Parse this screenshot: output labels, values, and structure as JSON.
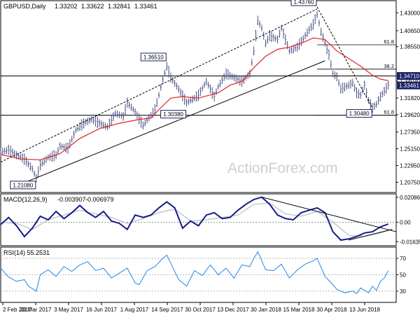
{
  "chart_data": [
    {
      "type": "candlestick",
      "panel": "price",
      "title": "GBPUSD,Daily",
      "ohlc": [
        "1.33202",
        "1.33622",
        "1.32841",
        "1.33461"
      ],
      "watermark": "ActionForex.com",
      "ylim": [
        1.195,
        1.445
      ],
      "yticks": [
        1.43,
        1.4065,
        1.3855,
        1.3403,
        1.3182,
        1.2962,
        1.2735,
        1.2515,
        1.2295,
        1.2075
      ],
      "ytick_labels": [
        "1.43000",
        "1.40650",
        "1.38550",
        "1.34030",
        "1.31820",
        "1.29620",
        "1.27350",
        "1.25150",
        "1.22950",
        "1.20750"
      ],
      "xlim": [
        0,
        100
      ],
      "close": [
        [
          0,
          1.247
        ],
        [
          2,
          1.25
        ],
        [
          4,
          1.243
        ],
        [
          6,
          1.238
        ],
        [
          8,
          1.225
        ],
        [
          9,
          1.213
        ],
        [
          10,
          1.23
        ],
        [
          12,
          1.24
        ],
        [
          14,
          1.243
        ],
        [
          15,
          1.255
        ],
        [
          17,
          1.252
        ],
        [
          19,
          1.276
        ],
        [
          21,
          1.285
        ],
        [
          23,
          1.29
        ],
        [
          25,
          1.285
        ],
        [
          27,
          1.28
        ],
        [
          29,
          1.298
        ],
        [
          31,
          1.294
        ],
        [
          32,
          1.312
        ],
        [
          34,
          1.3
        ],
        [
          36,
          1.282
        ],
        [
          37,
          1.289
        ],
        [
          39,
          1.302
        ],
        [
          41,
          1.342
        ],
        [
          42,
          1.36
        ],
        [
          43,
          1.345
        ],
        [
          45,
          1.33
        ],
        [
          47,
          1.312
        ],
        [
          49,
          1.318
        ],
        [
          50,
          1.322
        ],
        [
          52,
          1.34
        ],
        [
          54,
          1.32
        ],
        [
          55,
          1.333
        ],
        [
          57,
          1.35
        ],
        [
          59,
          1.345
        ],
        [
          61,
          1.34
        ],
        [
          63,
          1.35
        ],
        [
          64,
          1.38
        ],
        [
          65,
          1.42
        ],
        [
          66,
          1.41
        ],
        [
          67,
          1.39
        ],
        [
          68,
          1.4
        ],
        [
          70,
          1.395
        ],
        [
          71,
          1.41
        ],
        [
          73,
          1.38
        ],
        [
          75,
          1.385
        ],
        [
          77,
          1.4
        ],
        [
          79,
          1.415
        ],
        [
          80,
          1.428
        ],
        [
          81,
          1.405
        ],
        [
          82,
          1.39
        ],
        [
          83,
          1.375
        ],
        [
          84,
          1.35
        ],
        [
          85,
          1.346
        ],
        [
          86,
          1.33
        ],
        [
          88,
          1.335
        ],
        [
          89,
          1.338
        ],
        [
          90,
          1.325
        ],
        [
          91,
          1.322
        ],
        [
          92,
          1.335
        ],
        [
          93,
          1.315
        ],
        [
          94,
          1.305
        ],
        [
          95,
          1.31
        ],
        [
          96,
          1.32
        ],
        [
          97,
          1.327
        ],
        [
          98,
          1.335
        ]
      ],
      "moving_average": [
        [
          0,
          1.244
        ],
        [
          5,
          1.238
        ],
        [
          10,
          1.237
        ],
        [
          15,
          1.245
        ],
        [
          20,
          1.265
        ],
        [
          25,
          1.278
        ],
        [
          30,
          1.285
        ],
        [
          35,
          1.29
        ],
        [
          38,
          1.292
        ],
        [
          40,
          1.303
        ],
        [
          43,
          1.318
        ],
        [
          46,
          1.32
        ],
        [
          50,
          1.318
        ],
        [
          55,
          1.325
        ],
        [
          58,
          1.335
        ],
        [
          61,
          1.34
        ],
        [
          64,
          1.358
        ],
        [
          67,
          1.373
        ],
        [
          70,
          1.382
        ],
        [
          73,
          1.385
        ],
        [
          76,
          1.39
        ],
        [
          79,
          1.397
        ],
        [
          82,
          1.395
        ],
        [
          85,
          1.38
        ],
        [
          88,
          1.37
        ],
        [
          91,
          1.36
        ],
        [
          94,
          1.348
        ],
        [
          96,
          1.343
        ],
        [
          98,
          1.341
        ]
      ],
      "channel_lines": [
        {
          "style": "dashed",
          "from": [
            0,
            1.234
          ],
          "to": [
            80,
            1.435
          ]
        },
        {
          "style": "solid",
          "from": [
            6,
            1.207
          ],
          "to": [
            82,
            1.367
          ]
        }
      ],
      "horizontal_lines": [
        1.3471,
        1.2955
      ],
      "fibonacci": [
        {
          "label": "61.8",
          "level": 1.388
        },
        {
          "label": "38.2",
          "level": 1.356
        },
        {
          "label": "61.8",
          "level": 1.2955
        }
      ],
      "price_labels": [
        {
          "text": "1.43760",
          "x": 80,
          "y": 1.4376
        },
        {
          "text": "1.36510",
          "x": 42,
          "y": 1.3651
        },
        {
          "text": "1.30380",
          "x": 47,
          "y": 1.3038
        },
        {
          "text": "1.21080",
          "x": 9,
          "y": 1.2108
        },
        {
          "text": "1.30480",
          "x": 94,
          "y": 1.3048
        }
      ],
      "right_badges": [
        {
          "text": "1.34710",
          "level": 1.3471
        },
        {
          "text": "1.33461",
          "level": 1.33461
        }
      ],
      "colors": {
        "price": "#4a4f86",
        "moving_average": "#e0222a",
        "trend": "#000000",
        "badge_bg": "#1b2266"
      }
    },
    {
      "type": "line",
      "panel": "macd",
      "title": "MACD(12,26,9)",
      "values": [
        "-0.003907",
        "-0.006979"
      ],
      "ylim": [
        -0.0185,
        0.0225
      ],
      "yticks": [
        0.020861,
        0.0,
        -0.016357
      ],
      "ytick_labels": [
        "0.020861",
        "0.00",
        "-0.016357"
      ],
      "series": [
        {
          "points": [
            [
              0,
              -0.002
            ],
            [
              2,
              0.004
            ],
            [
              4,
              -0.003
            ],
            [
              6,
              -0.012
            ],
            [
              8,
              -0.005
            ],
            [
              10,
              0.005
            ],
            [
              12,
              0.002
            ],
            [
              14,
              0.009
            ],
            [
              16,
              0.003
            ],
            [
              18,
              0.008
            ],
            [
              20,
              0.014
            ],
            [
              22,
              0.008
            ],
            [
              24,
              0.004
            ],
            [
              26,
              0.009
            ],
            [
              28,
              0.001
            ],
            [
              30,
              -0.001
            ],
            [
              32,
              -0.006
            ],
            [
              34,
              0.006
            ],
            [
              36,
              0.004
            ],
            [
              38,
              0.006
            ],
            [
              40,
              0.012
            ],
            [
              42,
              0.017
            ],
            [
              44,
              0.012
            ],
            [
              46,
              -0.005
            ],
            [
              48,
              0.001
            ],
            [
              50,
              -0.003
            ],
            [
              52,
              0.006
            ],
            [
              54,
              0.008
            ],
            [
              56,
              0.003
            ],
            [
              58,
              0.004
            ],
            [
              60,
              0.01
            ],
            [
              62,
              0.015
            ],
            [
              64,
              0.019
            ],
            [
              66,
              0.021
            ],
            [
              68,
              0.015
            ],
            [
              70,
              0.006
            ],
            [
              72,
              0.003
            ],
            [
              74,
              0.002
            ],
            [
              76,
              0.008
            ],
            [
              78,
              0.01
            ],
            [
              80,
              0.012
            ],
            [
              82,
              0.008
            ],
            [
              84,
              -0.008
            ],
            [
              86,
              -0.015
            ],
            [
              88,
              -0.014
            ],
            [
              90,
              -0.012
            ],
            [
              92,
              -0.009
            ],
            [
              94,
              -0.008
            ],
            [
              96,
              -0.004
            ],
            [
              98,
              -0.0015
            ]
          ]
        },
        {
          "points": [
            [
              0,
              0.0
            ],
            [
              4,
              -0.001
            ],
            [
              8,
              -0.006
            ],
            [
              12,
              0.002
            ],
            [
              16,
              0.006
            ],
            [
              20,
              0.01
            ],
            [
              24,
              0.007
            ],
            [
              28,
              0.004
            ],
            [
              32,
              -0.001
            ],
            [
              36,
              0.003
            ],
            [
              40,
              0.008
            ],
            [
              44,
              0.011
            ],
            [
              48,
              0.001
            ],
            [
              52,
              0.002
            ],
            [
              56,
              0.004
            ],
            [
              60,
              0.006
            ],
            [
              64,
              0.015
            ],
            [
              68,
              0.016
            ],
            [
              72,
              0.007
            ],
            [
              76,
              0.005
            ],
            [
              80,
              0.009
            ],
            [
              84,
              0.0
            ],
            [
              88,
              -0.011
            ],
            [
              92,
              -0.012
            ],
            [
              96,
              -0.009
            ],
            [
              98,
              -0.007
            ]
          ]
        }
      ],
      "trendlines": [
        {
          "from": [
            66,
            0.021
          ],
          "to": [
            100,
            -0.008
          ]
        },
        {
          "from": [
            88,
            -0.015
          ],
          "to": [
            99,
            -0.006
          ]
        }
      ],
      "colors": {
        "macd": "#151b8a",
        "signal": "#c8c8c8",
        "trend": "#000000"
      }
    },
    {
      "type": "line",
      "panel": "rsi",
      "title": "RSI(14) 55.2531",
      "ylim": [
        18,
        82
      ],
      "yticks": [
        70,
        50,
        30
      ],
      "ytick_labels": [
        "70",
        "50",
        "30"
      ],
      "series": [
        {
          "points": [
            [
              0,
              58
            ],
            [
              2,
              47
            ],
            [
              4,
              42
            ],
            [
              6,
              44
            ],
            [
              7,
              36
            ],
            [
              9,
              30
            ],
            [
              10,
              50
            ],
            [
              12,
              56
            ],
            [
              14,
              48
            ],
            [
              16,
              60
            ],
            [
              18,
              54
            ],
            [
              20,
              62
            ],
            [
              22,
              66
            ],
            [
              24,
              55
            ],
            [
              26,
              58
            ],
            [
              28,
              46
            ],
            [
              30,
              52
            ],
            [
              32,
              58
            ],
            [
              34,
              40
            ],
            [
              35,
              38
            ],
            [
              37,
              55
            ],
            [
              39,
              60
            ],
            [
              41,
              70
            ],
            [
              42,
              74
            ],
            [
              44,
              54
            ],
            [
              45,
              44
            ],
            [
              47,
              36
            ],
            [
              49,
              55
            ],
            [
              51,
              49
            ],
            [
              53,
              62
            ],
            [
              55,
              50
            ],
            [
              57,
              58
            ],
            [
              59,
              46
            ],
            [
              61,
              62
            ],
            [
              63,
              60
            ],
            [
              64,
              70
            ],
            [
              65,
              78
            ],
            [
              67,
              56
            ],
            [
              69,
              55
            ],
            [
              71,
              63
            ],
            [
              73,
              46
            ],
            [
              75,
              56
            ],
            [
              77,
              63
            ],
            [
              79,
              67
            ],
            [
              80,
              70
            ],
            [
              82,
              48
            ],
            [
              84,
              38
            ],
            [
              85,
              32
            ],
            [
              87,
              28
            ],
            [
              89,
              30
            ],
            [
              90,
              27
            ],
            [
              91,
              34
            ],
            [
              93,
              28
            ],
            [
              94,
              36
            ],
            [
              95,
              31
            ],
            [
              96,
              42
            ],
            [
              97,
              46
            ],
            [
              98,
              55
            ]
          ]
        }
      ],
      "colors": {
        "line": "#2288e6"
      }
    }
  ],
  "x_axis_labels": [
    "2 Feb 2017",
    "20 Mar 2017",
    "3 May 2017",
    "16 Jun 2017",
    "1 Aug 2017",
    "14 Sep 2017",
    "30 Oct 2017",
    "13 Dec 2017",
    "30 Jan 2018",
    "15 Mar 2018",
    "30 Apr 2018",
    "13 Jun 2018"
  ]
}
